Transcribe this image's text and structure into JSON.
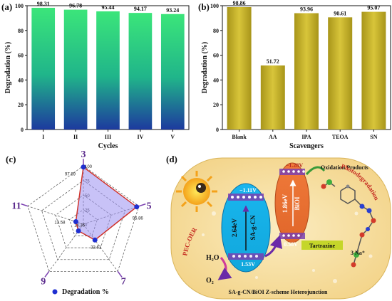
{
  "panels": {
    "a": "(a)",
    "b": "(b)",
    "c": "(c)",
    "d": "(d)"
  },
  "chart_data": [
    {
      "type": "bar",
      "panel": "(a)",
      "categories": [
        "I",
        "II",
        "III",
        "IV",
        "V"
      ],
      "values": [
        98.31,
        96.78,
        95.44,
        94.17,
        93.24
      ],
      "value_labels": [
        "98.31",
        "96.78",
        "95.44",
        "94.17",
        "93.24"
      ],
      "xlabel": "Cycles",
      "ylabel": "Degradation (%)",
      "ylim": [
        0,
        100
      ],
      "yticks": [
        "0",
        "20",
        "40",
        "60",
        "80",
        "100"
      ],
      "colors": {
        "top": "#39e27c",
        "bottom": "#1d3fa6"
      }
    },
    {
      "type": "bar",
      "panel": "(b)",
      "categories": [
        "Blank",
        "AA",
        "IPA",
        "TEOA",
        "SN"
      ],
      "values": [
        98.86,
        51.72,
        93.96,
        90.61,
        95.07
      ],
      "value_labels": [
        "98.86",
        "51.72",
        "93.96",
        "90.61",
        "95.07"
      ],
      "xlabel": "Scavengers",
      "ylabel": "Degradation (%)",
      "ylim": [
        0,
        100
      ],
      "yticks": [
        "0",
        "20",
        "40",
        "60",
        "80",
        "100"
      ],
      "colors": {
        "bar": "#c4b21a"
      }
    },
    {
      "type": "radar",
      "panel": "(c)",
      "axes": [
        "3",
        "5",
        "7",
        "9",
        "11"
      ],
      "values": [
        97.89,
        95.86,
        33.61,
        14.36,
        13.58
      ],
      "value_labels": [
        "97.89",
        "95.86",
        "33.61",
        "14.36",
        "13.58"
      ],
      "rlim": [
        0,
        100
      ],
      "rticks": [
        "0",
        "25",
        "50",
        "75",
        "100"
      ],
      "legend": "Degradation %",
      "colors": {
        "fill": "#9a8ff0",
        "edge": "#d0332b",
        "marker": "#1f2fd0",
        "axis": "#7a3fb0"
      }
    }
  ],
  "diagram": {
    "sagcn_label": "SA-g-CN",
    "sagcn_gap": "2.64eV",
    "sagcn_cb": "−1.11V",
    "sagcn_vb": "1.53V",
    "bioi_label": "BiOI",
    "bioi_gap": "1.86eV",
    "bioi_cb": "−1.28V",
    "bioi_vb": "0.58V",
    "oxidation": "Oxidation Products",
    "tartrazine": "Tartrazine",
    "photodegradation": "Photodegradation",
    "pec_oer": "PEC-OER",
    "h2o": "H₂O",
    "o2": "O₂",
    "na": "3 Na⁺",
    "caption": "SA-g-CN/BiOI Z-scheme Heterojunction"
  }
}
